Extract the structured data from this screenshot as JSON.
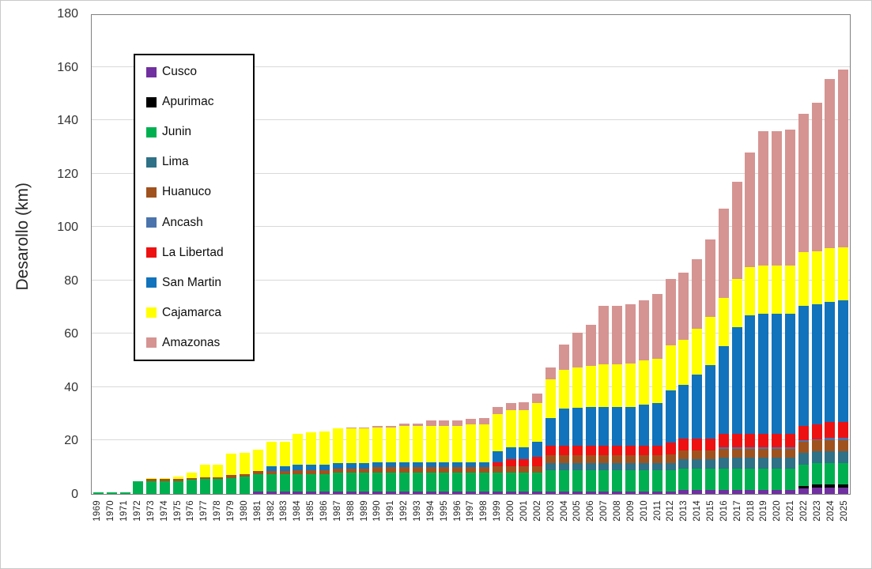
{
  "figure": {
    "background": "#ffffff",
    "outer_border_color": "#c9c9c9",
    "frame_color": "#808080",
    "grid_color": "#d9d9d9",
    "text_color": "#262626"
  },
  "axes": {
    "y_title": "Desarollo (km)",
    "y_ticks": [
      0,
      20,
      40,
      60,
      80,
      100,
      120,
      140,
      160,
      180
    ],
    "y_max": 180
  },
  "chart_data": {
    "type": "bar",
    "stacked": true,
    "title": "",
    "xlabel": "",
    "ylabel": "Desarollo (km)",
    "ylim": [
      0,
      180
    ],
    "grid": true,
    "legend_position": "upper-left-inside",
    "categories": [
      1969,
      1970,
      1971,
      1972,
      1973,
      1974,
      1975,
      1976,
      1977,
      1978,
      1979,
      1980,
      1981,
      1982,
      1983,
      1984,
      1985,
      1986,
      1987,
      1988,
      1989,
      1990,
      1991,
      1992,
      1993,
      1994,
      1995,
      1996,
      1997,
      1998,
      1999,
      2000,
      2001,
      2002,
      2003,
      2004,
      2005,
      2006,
      2007,
      2008,
      2009,
      2010,
      2011,
      2012,
      2013,
      2014,
      2015,
      2016,
      2017,
      2018,
      2019,
      2020,
      2021,
      2022,
      2023,
      2024,
      2025
    ],
    "series": [
      {
        "name": "Cusco",
        "color": "#7030A0",
        "values": [
          0,
          0,
          0,
          0,
          0,
          0,
          0,
          0,
          0,
          0,
          0,
          0,
          1,
          1,
          1,
          1,
          1,
          1,
          1,
          1,
          1,
          1,
          1,
          1,
          1,
          1,
          1,
          1,
          1,
          1,
          1,
          1,
          1,
          1,
          1,
          1,
          1,
          1,
          1,
          1,
          1,
          1,
          1,
          1,
          1.5,
          1.5,
          1.5,
          1.5,
          1.5,
          1.5,
          1.5,
          1.5,
          1.5,
          2,
          2.5,
          2.5,
          2.5
        ]
      },
      {
        "name": "Apurimac",
        "color": "#000000",
        "values": [
          0,
          0,
          0,
          0,
          0,
          0,
          0,
          0,
          0,
          0,
          0,
          0,
          0,
          0,
          0,
          0,
          0,
          0,
          0,
          0,
          0,
          0,
          0,
          0,
          0,
          0,
          0,
          0,
          0,
          0,
          0,
          0,
          0,
          0,
          0,
          0,
          0,
          0,
          0,
          0,
          0,
          0,
          0,
          0,
          0,
          0,
          0,
          0,
          0,
          0,
          0,
          0,
          0,
          1,
          1,
          1,
          1
        ]
      },
      {
        "name": "Junin",
        "color": "#00B050",
        "values": [
          0.5,
          0.5,
          0.5,
          4.8,
          4.8,
          4.8,
          4.8,
          5.3,
          5.5,
          5.5,
          6,
          6.5,
          6.5,
          6.5,
          6.5,
          6.5,
          6.5,
          6.5,
          7,
          7,
          7,
          7,
          7,
          7,
          7,
          7,
          7,
          7,
          7,
          7,
          7,
          7,
          7,
          7,
          8,
          8,
          8,
          8,
          8,
          8,
          8,
          8,
          8,
          8,
          8,
          8,
          8,
          8,
          8,
          8,
          8,
          8,
          8,
          8,
          8,
          8,
          8
        ]
      },
      {
        "name": "Lima",
        "color": "#2F7186",
        "values": [
          0,
          0,
          0,
          0,
          0,
          0,
          0,
          0,
          0,
          0,
          0,
          0,
          0,
          0,
          0,
          0,
          0,
          0,
          0,
          0,
          0,
          0,
          0,
          0,
          0,
          0,
          0,
          0,
          0,
          0,
          0,
          0,
          0,
          0,
          2.5,
          2.5,
          2.5,
          2.5,
          2.5,
          2.5,
          2.5,
          2.5,
          2.5,
          2.5,
          3.5,
          3.5,
          3.5,
          4,
          4,
          4,
          4,
          4,
          4,
          4.5,
          4.5,
          4.5,
          4.5
        ]
      },
      {
        "name": "Huanuco",
        "color": "#A0521E",
        "values": [
          0,
          0,
          0,
          0,
          0.7,
          0.7,
          0.7,
          0.7,
          0.7,
          0.7,
          1,
          1,
          1,
          1,
          1,
          1.5,
          1.5,
          1.5,
          1.5,
          1.5,
          1.5,
          2,
          2,
          2,
          2,
          2,
          2,
          2,
          2,
          2,
          2.5,
          2.5,
          2.5,
          2.5,
          3,
          3,
          3,
          3,
          3,
          3,
          3,
          3,
          3,
          3.3,
          3.3,
          3.3,
          3.3,
          3.5,
          3.5,
          3.5,
          3.5,
          3.5,
          3.5,
          4,
          4,
          4,
          4
        ]
      },
      {
        "name": "Ancash",
        "color": "#4B74AC",
        "values": [
          0,
          0,
          0,
          0,
          0,
          0,
          0,
          0,
          0,
          0,
          0,
          0,
          0,
          0,
          0,
          0,
          0,
          0,
          0,
          0,
          0,
          0,
          0,
          0,
          0,
          0,
          0,
          0,
          0,
          0,
          0,
          0,
          0,
          0,
          0,
          0,
          0,
          0,
          0,
          0,
          0,
          0,
          0,
          0,
          0,
          0,
          0,
          0.5,
          0.5,
          0.5,
          0.5,
          0.5,
          0.5,
          0.5,
          0.5,
          1,
          1
        ]
      },
      {
        "name": "La Libertad",
        "color": "#EE1111",
        "values": [
          0,
          0,
          0,
          0,
          0,
          0,
          0,
          0,
          0,
          0,
          0,
          0,
          0,
          0,
          0,
          0,
          0,
          0,
          0,
          0,
          0,
          0,
          0,
          0,
          0,
          0,
          0,
          0,
          0,
          0,
          1.5,
          2.5,
          2.5,
          3.5,
          3.5,
          3.5,
          3.5,
          3.5,
          3.5,
          3.5,
          3.5,
          3.5,
          3.5,
          4.5,
          4.5,
          4.5,
          4.5,
          5,
          5,
          5,
          5,
          5,
          5,
          5.5,
          5.5,
          6,
          6
        ]
      },
      {
        "name": "San Martin",
        "color": "#1173BC",
        "values": [
          0,
          0,
          0,
          0,
          0,
          0,
          0,
          0,
          0,
          0,
          0,
          0,
          0,
          2,
          2,
          2,
          2,
          2,
          2,
          2,
          2,
          2,
          2,
          2,
          2,
          2,
          2,
          2,
          2,
          2,
          4,
          4.5,
          4.5,
          5.5,
          10.5,
          14,
          14.3,
          14.5,
          14.5,
          14.5,
          14.5,
          15.5,
          16,
          19.5,
          20,
          24,
          27.5,
          33,
          40,
          44.5,
          45,
          45,
          45,
          45,
          45,
          45,
          45.5
        ]
      },
      {
        "name": "Cajamarca",
        "color": "#FFFF00",
        "values": [
          0,
          0,
          0,
          0,
          0.5,
          0.5,
          1,
          2,
          4.8,
          4.8,
          8,
          8,
          8,
          9,
          9,
          11.5,
          12,
          12.5,
          13,
          13,
          13,
          13,
          13,
          13.5,
          13.5,
          13.5,
          13.5,
          13.5,
          14,
          14,
          14,
          14,
          14,
          14.5,
          14.5,
          14.5,
          15,
          15.5,
          16,
          16,
          16.5,
          16.5,
          16.5,
          17,
          17,
          17,
          18,
          18,
          18,
          18,
          18,
          18,
          18,
          20,
          20,
          20,
          20
        ]
      },
      {
        "name": "Amazonas",
        "color": "#D59492",
        "values": [
          0,
          0,
          0,
          0,
          0,
          0,
          0,
          0,
          0,
          0,
          0,
          0,
          0,
          0,
          0,
          0,
          0,
          0,
          0,
          0.5,
          0.5,
          0.5,
          0.5,
          1,
          1,
          2,
          2,
          2,
          2,
          2.5,
          2.5,
          2.5,
          3,
          3.5,
          4.5,
          9.5,
          13.2,
          15.5,
          22,
          22,
          22,
          22.5,
          24.5,
          24.7,
          25.2,
          26.2,
          29,
          33.5,
          36.5,
          43,
          50.5,
          50.5,
          51,
          52,
          55.5,
          63.5,
          66.5
        ]
      }
    ]
  }
}
